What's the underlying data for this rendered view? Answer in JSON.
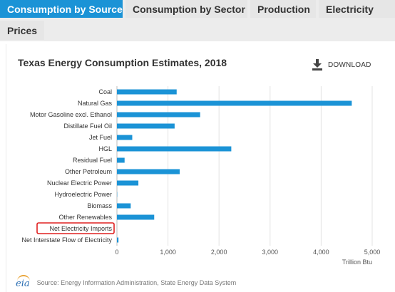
{
  "tabs": [
    {
      "label": "Consumption by Source",
      "active": true
    },
    {
      "label": "Consumption by Sector",
      "active": false
    },
    {
      "label": "Production",
      "active": false
    },
    {
      "label": "Electricity",
      "active": false
    },
    {
      "label": "Prices",
      "active": false
    }
  ],
  "download": {
    "label": "DOWNLOAD",
    "icon": "download-icon"
  },
  "source": {
    "logo": "eia",
    "text": "Source: Energy Information Administration, State Energy Data System"
  },
  "colors": {
    "bar": "#1b93d6",
    "active_tab": "#1b93d6",
    "highlight_box": "#e02020"
  },
  "chart_data": {
    "type": "bar",
    "orientation": "horizontal",
    "title": "Texas Energy Consumption Estimates, 2018",
    "xlabel": "Trillion Btu",
    "ylabel": "",
    "xlim": [
      0,
      5000
    ],
    "xticks": [
      0,
      1000,
      2000,
      3000,
      4000,
      5000
    ],
    "xtick_labels": [
      "0",
      "1,000",
      "2,000",
      "3,000",
      "4,000",
      "5,000"
    ],
    "grid": true,
    "categories": [
      "Coal",
      "Natural Gas",
      "Motor Gasoline excl. Ethanol",
      "Distillate Fuel Oil",
      "Jet Fuel",
      "HGL",
      "Residual Fuel",
      "Other Petroleum",
      "Nuclear Electric Power",
      "Hydroelectric Power",
      "Biomass",
      "Other Renewables",
      "Net Electricity Imports",
      "Net Interstate Flow of Electricity"
    ],
    "values": [
      1170,
      4600,
      1630,
      1130,
      300,
      2240,
      150,
      1230,
      420,
      5,
      270,
      730,
      0,
      30
    ],
    "highlighted_category": "Net Electricity Imports"
  }
}
